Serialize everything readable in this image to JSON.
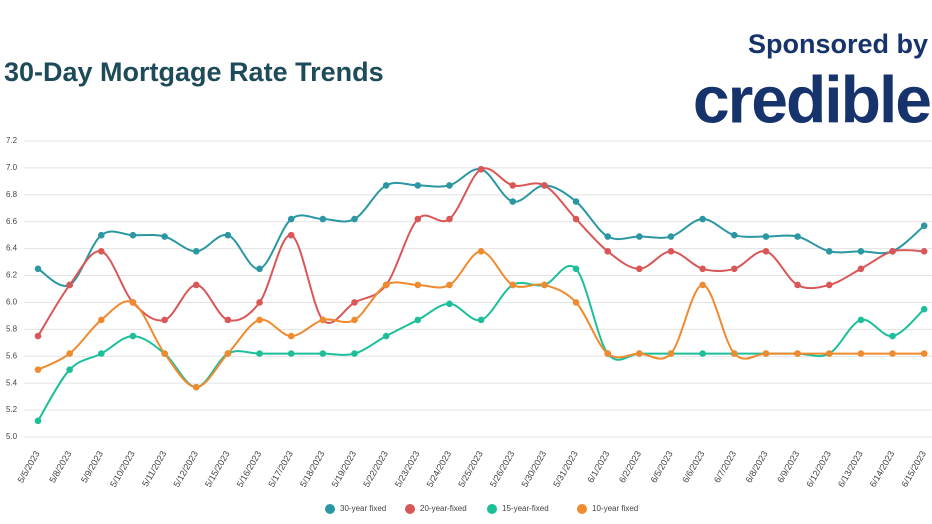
{
  "chart_data": {
    "type": "line",
    "title": "30-Day Mortgage Rate Trends",
    "sponsor_text": "Sponsored by",
    "sponsor_logo": "credible",
    "categories": [
      "5/5/2023",
      "5/8/2023",
      "5/9/2023",
      "5/10/2023",
      "5/11/2023",
      "5/12/2023",
      "5/15/2023",
      "5/16/2023",
      "5/17/2023",
      "5/18/2023",
      "5/19/2023",
      "5/22/2023",
      "5/23/2023",
      "5/24/2023",
      "5/25/2023",
      "5/26/2023",
      "5/30/2023",
      "5/31/2023",
      "6/1/2023",
      "6/2/2023",
      "6/5/2023",
      "6/6/2023",
      "6/7/2023",
      "6/8/2023",
      "6/9/2023",
      "6/12/2023",
      "6/13/2023",
      "6/14/2023",
      "6/15/2023"
    ],
    "series": [
      {
        "name": "30-year fixed",
        "color": "#2a97a3",
        "values": [
          6.25,
          6.13,
          6.5,
          6.5,
          6.49,
          6.38,
          6.5,
          6.25,
          6.62,
          6.62,
          6.62,
          6.87,
          6.87,
          6.87,
          6.99,
          6.75,
          6.87,
          6.75,
          6.49,
          6.49,
          6.49,
          6.62,
          6.5,
          6.49,
          6.49,
          6.38,
          6.38,
          6.38,
          6.57
        ]
      },
      {
        "name": "20-year-fixed",
        "color": "#d95757",
        "values": [
          5.75,
          6.13,
          6.38,
          6.0,
          5.87,
          6.13,
          5.87,
          6.0,
          6.5,
          5.87,
          6.0,
          6.13,
          6.62,
          6.62,
          6.99,
          6.87,
          6.87,
          6.62,
          6.38,
          6.25,
          6.38,
          6.25,
          6.25,
          6.38,
          6.13,
          6.13,
          6.25,
          6.38,
          6.38
        ]
      },
      {
        "name": "15-year-fixed",
        "color": "#1dbf9b",
        "values": [
          5.12,
          5.5,
          5.62,
          5.75,
          5.62,
          5.37,
          5.62,
          5.62,
          5.62,
          5.62,
          5.62,
          5.75,
          5.87,
          5.99,
          5.87,
          6.13,
          6.13,
          6.25,
          5.62,
          5.62,
          5.62,
          5.62,
          5.62,
          5.62,
          5.62,
          5.62,
          5.87,
          5.75,
          5.95
        ]
      },
      {
        "name": "10-year fixed",
        "color": "#f08a2e",
        "values": [
          5.5,
          5.62,
          5.87,
          6.0,
          5.62,
          5.37,
          5.62,
          5.87,
          5.75,
          5.87,
          5.87,
          6.13,
          6.13,
          6.13,
          6.38,
          6.13,
          6.13,
          6.0,
          5.62,
          5.62,
          5.62,
          6.13,
          5.62,
          5.62,
          5.62,
          5.62,
          5.62,
          5.62,
          5.62
        ]
      }
    ],
    "ylim": [
      5.0,
      7.2
    ],
    "yticks": [
      {
        "value": 5.0,
        "label": "5.0"
      },
      {
        "value": 5.2,
        "label": "5.2"
      },
      {
        "value": 5.4,
        "label": "5.4"
      },
      {
        "value": 5.6,
        "label": "5.6"
      },
      {
        "value": 5.8,
        "label": "5.8"
      },
      {
        "value": 6.0,
        "label": "6.0"
      },
      {
        "value": 6.2,
        "label": "6.2"
      },
      {
        "value": 6.4,
        "label": "6.4"
      },
      {
        "value": 6.6,
        "label": "6.6"
      },
      {
        "value": 6.8,
        "label": "6.8"
      },
      {
        "value": 7.0,
        "label": "7.0"
      },
      {
        "value": 7.2,
        "label": "7.2"
      }
    ],
    "grid": true
  }
}
